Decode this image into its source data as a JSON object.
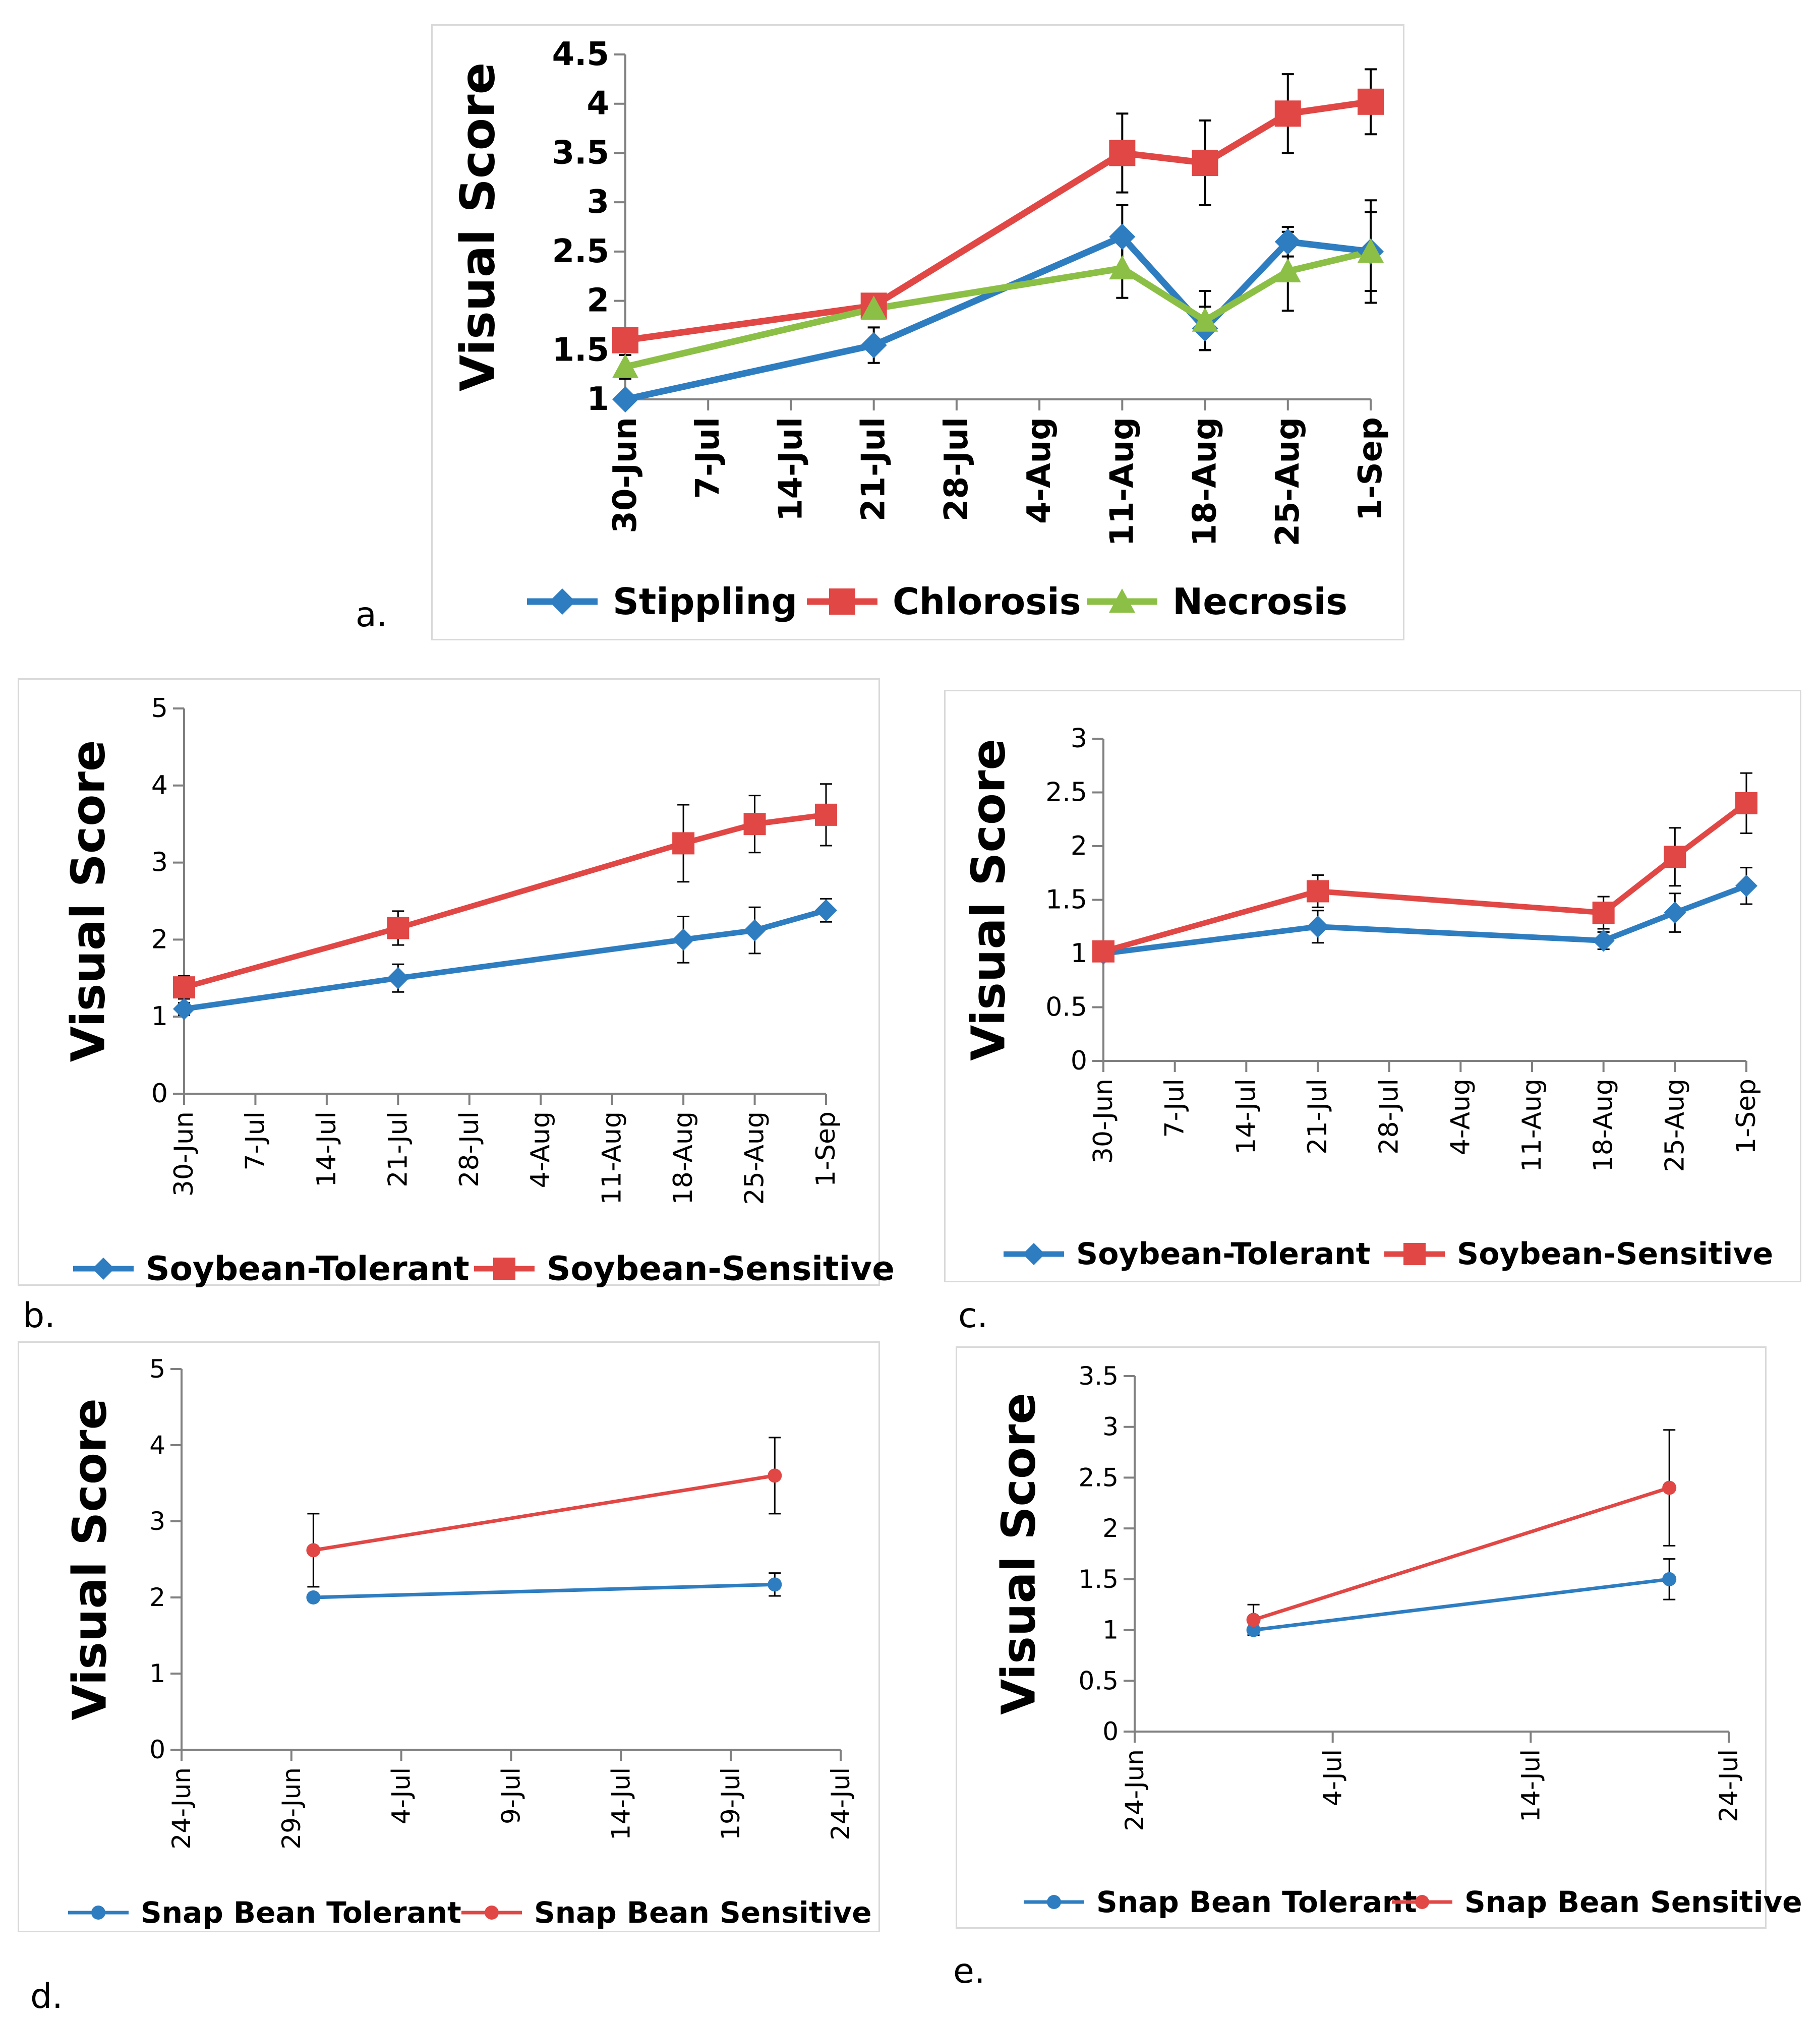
{
  "colors": {
    "blue": "#2e7dc1",
    "red": "#e04745",
    "green": "#8cbf45",
    "axis": "#808080"
  },
  "chart_data": [
    {
      "id": "a",
      "panel_label": "a.",
      "type": "line",
      "ylabel": "Visual Score",
      "ylim": [
        1,
        4.5
      ],
      "yticks": [
        "1",
        "1.5",
        "2",
        "2.5",
        "3",
        "3.5",
        "4",
        "4.5"
      ],
      "xlim_days": [
        0,
        63
      ],
      "xticks": [
        "30-Jun",
        "7-Jul",
        "14-Jul",
        "21-Jul",
        "28-Jul",
        "4-Aug",
        "11-Aug",
        "18-Aug",
        "25-Aug",
        "1-Sep"
      ],
      "series": [
        {
          "name": "Stippling",
          "color": "#2e7dc1",
          "marker": "diamond",
          "x_days": [
            0,
            21,
            42,
            49,
            56,
            63
          ],
          "values": [
            1.0,
            1.55,
            2.65,
            1.72,
            2.6,
            2.5
          ],
          "err": [
            0.0,
            0.18,
            0.32,
            0.22,
            0.15,
            0.52
          ]
        },
        {
          "name": "Chlorosis",
          "color": "#e04745",
          "marker": "square",
          "x_days": [
            0,
            21,
            42,
            49,
            56,
            63
          ],
          "values": [
            1.6,
            1.95,
            3.5,
            3.4,
            3.9,
            4.02
          ],
          "err": [
            0.05,
            0.12,
            0.4,
            0.43,
            0.4,
            0.33
          ]
        },
        {
          "name": "Necrosis",
          "color": "#8cbf45",
          "marker": "triangle",
          "x_days": [
            0,
            21,
            42,
            49,
            56,
            63
          ],
          "values": [
            1.33,
            1.92,
            2.33,
            1.8,
            2.3,
            2.5
          ],
          "err": [
            0.12,
            0.1,
            0.3,
            0.3,
            0.4,
            0.4
          ]
        }
      ]
    },
    {
      "id": "b",
      "panel_label": "b.",
      "type": "line",
      "ylabel": "Visual Score",
      "ylim": [
        0,
        5
      ],
      "yticks": [
        "0",
        "1",
        "2",
        "3",
        "4",
        "5"
      ],
      "xlim_days": [
        0,
        63
      ],
      "xticks": [
        "30-Jun",
        "7-Jul",
        "14-Jul",
        "21-Jul",
        "28-Jul",
        "4-Aug",
        "11-Aug",
        "18-Aug",
        "25-Aug",
        "1-Sep"
      ],
      "series": [
        {
          "name": "Soybean-Tolerant",
          "color": "#2e7dc1",
          "marker": "diamond",
          "x_days": [
            0,
            21,
            49,
            56,
            63
          ],
          "values": [
            1.1,
            1.5,
            2.0,
            2.12,
            2.38
          ],
          "err": [
            0.08,
            0.18,
            0.3,
            0.3,
            0.15
          ]
        },
        {
          "name": "Soybean-Sensitive",
          "color": "#e04745",
          "marker": "square",
          "x_days": [
            0,
            21,
            49,
            56,
            63
          ],
          "values": [
            1.38,
            2.15,
            3.25,
            3.5,
            3.62
          ],
          "err": [
            0.15,
            0.22,
            0.5,
            0.37,
            0.4
          ]
        }
      ]
    },
    {
      "id": "c",
      "panel_label": "c.",
      "type": "line",
      "ylabel": "Visual Score",
      "ylim": [
        0,
        3
      ],
      "yticks": [
        "0",
        "0.5",
        "1",
        "1.5",
        "2",
        "2.5",
        "3"
      ],
      "xlim_days": [
        0,
        63
      ],
      "xticks": [
        "30-Jun",
        "7-Jul",
        "14-Jul",
        "21-Jul",
        "28-Jul",
        "4-Aug",
        "11-Aug",
        "18-Aug",
        "25-Aug",
        "1-Sep"
      ],
      "series": [
        {
          "name": "Soybean-Tolerant",
          "color": "#2e7dc1",
          "marker": "diamond",
          "x_days": [
            0,
            21,
            49,
            56,
            63
          ],
          "values": [
            1.0,
            1.25,
            1.12,
            1.38,
            1.63
          ],
          "err": [
            0.0,
            0.15,
            0.08,
            0.18,
            0.17
          ]
        },
        {
          "name": "Soybean-Sensitive",
          "color": "#e04745",
          "marker": "square",
          "x_days": [
            0,
            21,
            49,
            56,
            63
          ],
          "values": [
            1.02,
            1.58,
            1.38,
            1.9,
            2.4
          ],
          "err": [
            0.03,
            0.15,
            0.15,
            0.27,
            0.28
          ]
        }
      ]
    },
    {
      "id": "d",
      "panel_label": "d.",
      "type": "line",
      "ylabel": "Visual Score",
      "ylim": [
        0,
        5
      ],
      "yticks": [
        "0",
        "1",
        "2",
        "3",
        "4",
        "5"
      ],
      "xlim_days": [
        0,
        30
      ],
      "xticks": [
        "24-Jun",
        "29-Jun",
        "4-Jul",
        "9-Jul",
        "14-Jul",
        "19-Jul",
        "24-Jul"
      ],
      "series": [
        {
          "name": "Snap Bean Tolerant",
          "color": "#2e7dc1",
          "marker": "circle",
          "x_days": [
            6,
            27
          ],
          "values": [
            2.0,
            2.17
          ],
          "err": [
            0.0,
            0.15
          ]
        },
        {
          "name": "Snap Bean Sensitive",
          "color": "#e04745",
          "marker": "circle",
          "x_days": [
            6,
            27
          ],
          "values": [
            2.62,
            3.6
          ],
          "err": [
            0.48,
            0.5
          ]
        }
      ]
    },
    {
      "id": "e",
      "panel_label": "e.",
      "type": "line",
      "ylabel": "Visual Score",
      "ylim": [
        0,
        3.5
      ],
      "yticks": [
        "0",
        "0.5",
        "1",
        "1.5",
        "2",
        "2.5",
        "3",
        "3.5"
      ],
      "xlim_days": [
        0,
        30
      ],
      "xticks": [
        "24-Jun",
        "4-Jul",
        "14-Jul",
        "24-Jul"
      ],
      "series": [
        {
          "name": "Snap Bean Tolerant",
          "color": "#2e7dc1",
          "marker": "circle",
          "x_days": [
            6,
            27
          ],
          "values": [
            1.0,
            1.5
          ],
          "err": [
            0.0,
            0.2
          ]
        },
        {
          "name": "Snap Bean Sensitive",
          "color": "#e04745",
          "marker": "circle",
          "x_days": [
            6,
            27
          ],
          "values": [
            1.1,
            2.4
          ],
          "err": [
            0.15,
            0.57
          ]
        }
      ]
    }
  ]
}
